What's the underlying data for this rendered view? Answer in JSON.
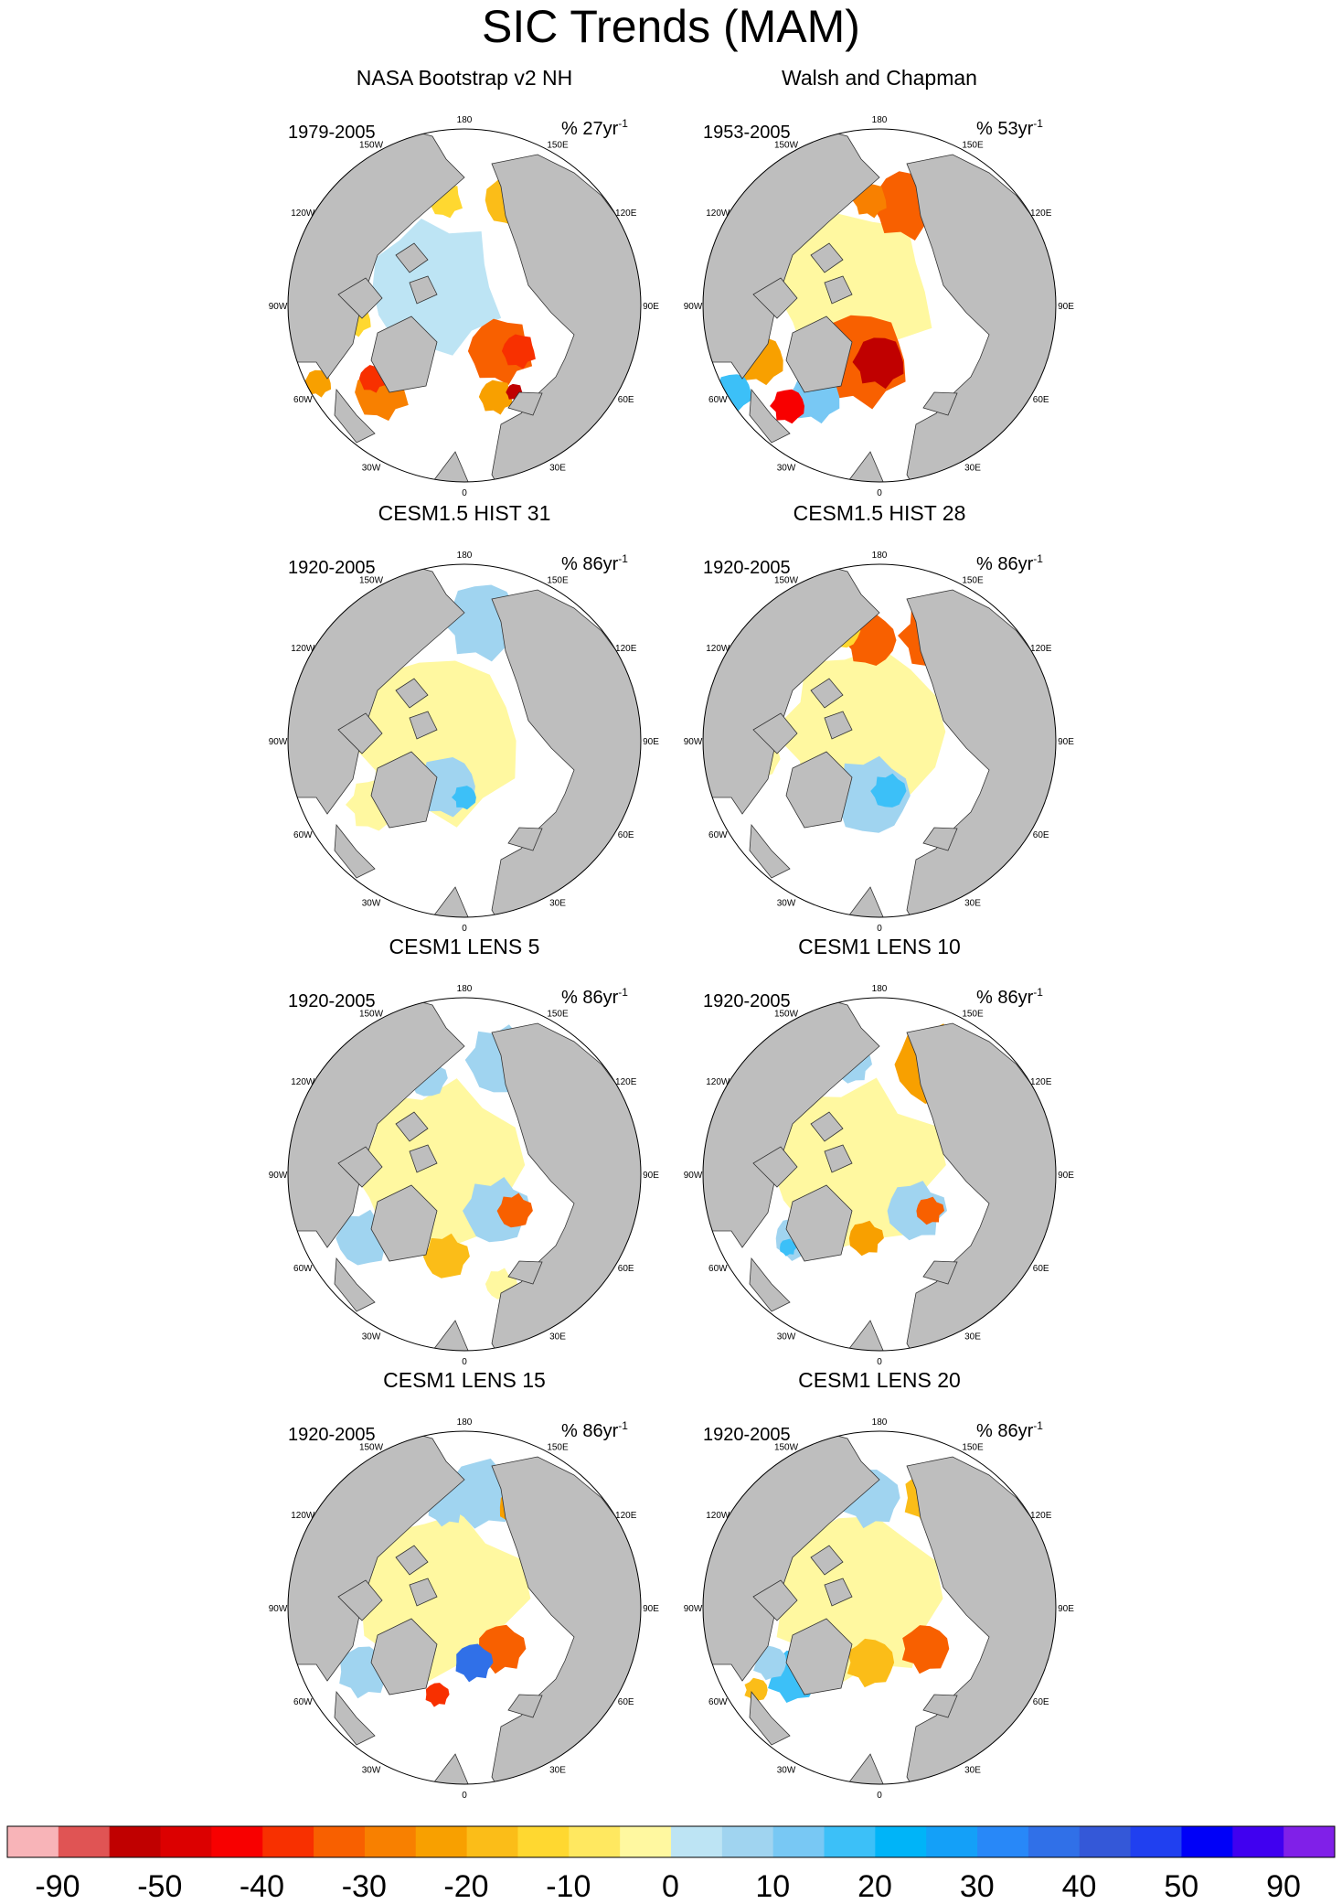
{
  "title": "SIC Trends (MAM)",
  "lon_labels": [
    "180",
    "150E",
    "120E",
    "90E",
    "60E",
    "30E",
    "0",
    "30W",
    "60W",
    "90W",
    "120W",
    "150W"
  ],
  "panels": [
    {
      "title": "NASA Bootstrap v2 NH",
      "period": "1979-2005",
      "units_prefix": "% 27yr",
      "units_sup": "-1"
    },
    {
      "title": "Walsh and Chapman",
      "period": "1953-2005",
      "units_prefix": "% 53yr",
      "units_sup": "-1"
    },
    {
      "title": "CESM1.5 HIST 31",
      "period": "1920-2005",
      "units_prefix": "% 86yr",
      "units_sup": "-1"
    },
    {
      "title": "CESM1.5 HIST 28",
      "period": "1920-2005",
      "units_prefix": "% 86yr",
      "units_sup": "-1"
    },
    {
      "title": "CESM1 LENS 5",
      "period": "1920-2005",
      "units_prefix": "% 86yr",
      "units_sup": "-1"
    },
    {
      "title": "CESM1 LENS 10",
      "period": "1920-2005",
      "units_prefix": "% 86yr",
      "units_sup": "-1"
    },
    {
      "title": "CESM1 LENS 15",
      "period": "1920-2005",
      "units_prefix": "% 86yr",
      "units_sup": "-1"
    },
    {
      "title": "CESM1 LENS 20",
      "period": "1920-2005",
      "units_prefix": "% 86yr",
      "units_sup": "-1"
    }
  ],
  "colorbar": {
    "colors": [
      "#f8b4b8",
      "#e05454",
      "#c00000",
      "#dc0000",
      "#f80000",
      "#f83000",
      "#f86000",
      "#f88000",
      "#f8a000",
      "#fbbd18",
      "#ffd830",
      "#ffe860",
      "#fff8a0",
      "#bde4f4",
      "#a0d4f0",
      "#78c8f4",
      "#3cc0f8",
      "#00b4f8",
      "#14a0f8",
      "#2888f8",
      "#3070e8",
      "#3458d8",
      "#2040f0",
      "#0000f8",
      "#4000f0",
      "#8020e8"
    ],
    "tick_labels": [
      "-90",
      "-50",
      "-40",
      "-30",
      "-20",
      "-10",
      "0",
      "10",
      "20",
      "30",
      "40",
      "50",
      "90"
    ]
  },
  "land_color": "#bebebe",
  "ocean_color": "#ffffff"
}
